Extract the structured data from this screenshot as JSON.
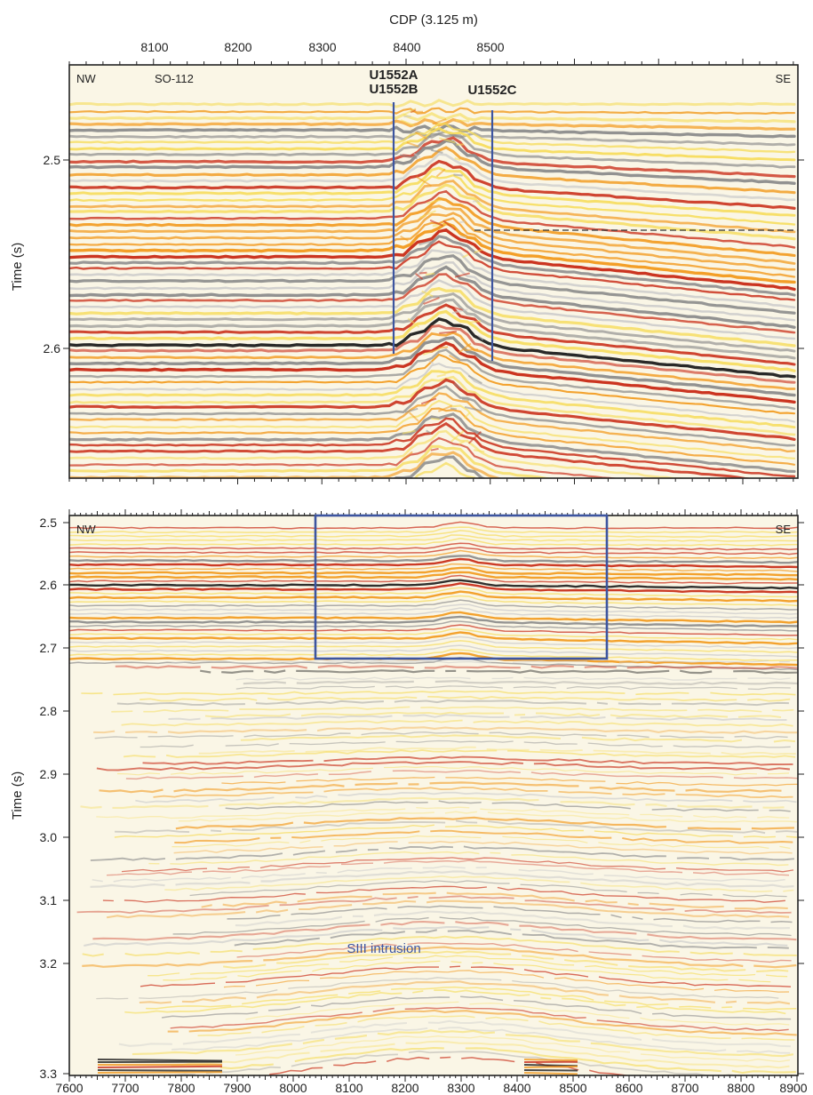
{
  "top_panel": {
    "axis_title_x": "CDP (3.125 m)",
    "axis_title_y": "Time (s)",
    "x_ticks": [
      "8100",
      "8200",
      "8300",
      "8400",
      "8500"
    ],
    "y_ticks": [
      "2.5",
      "2.6"
    ],
    "corner_left": "NW",
    "corner_right": "SE",
    "line_name": "SO-112",
    "well_ab_label_1": "U1552A",
    "well_ab_label_2": "U1552B",
    "well_c_label": "U1552C"
  },
  "bottom_panel": {
    "axis_title_y": "Time (s)",
    "x_ticks": [
      "7600",
      "7700",
      "7800",
      "7900",
      "8000",
      "8100",
      "8200",
      "8300",
      "8400",
      "8500",
      "8600",
      "8700",
      "8800",
      "8900"
    ],
    "y_ticks": [
      "2.5",
      "2.6",
      "2.7",
      "2.8",
      "2.9",
      "3.0",
      "3.1",
      "3.2",
      "3.3"
    ],
    "corner_left": "NW",
    "corner_right": "SE",
    "intrusion_label": "SIII intrusion"
  },
  "colors": {
    "frame": "#222222",
    "well_line": "#3d55a0",
    "box": "#3d55a0",
    "dashed": "#333333",
    "seismic_peak": "#1e1e1e",
    "seismic_red": "#c82a16",
    "seismic_orange": "#f29a1e",
    "seismic_yellow": "#f6dc5a",
    "seismic_gray": "#8c8c8c",
    "background": "#faf6e6"
  }
}
